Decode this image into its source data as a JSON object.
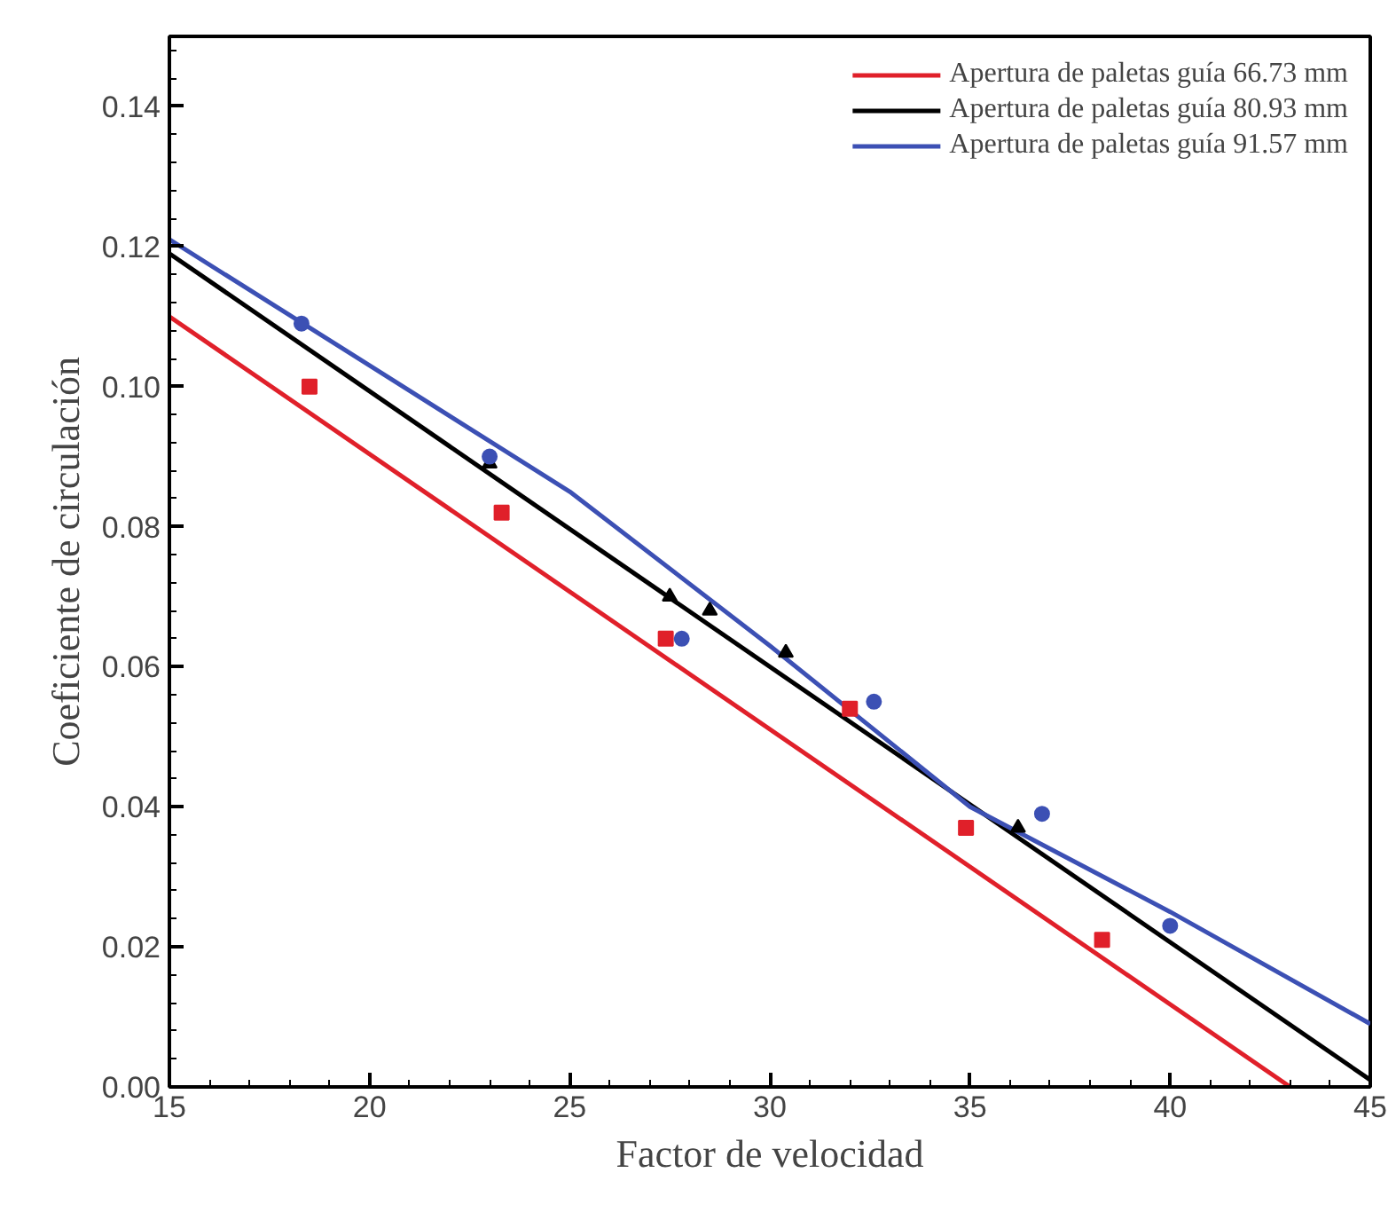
{
  "chart_data": {
    "type": "line",
    "xlabel": "Factor de velocidad",
    "ylabel": "Coeficiente de circulación",
    "xlim": [
      15,
      45
    ],
    "ylim": [
      0,
      0.15
    ],
    "xticks": [
      15,
      20,
      25,
      30,
      35,
      40,
      45
    ],
    "yticks": [
      {
        "value": 0,
        "label": "0.00"
      },
      {
        "value": 0.02,
        "label": "0.02"
      },
      {
        "value": 0.04,
        "label": "0.04"
      },
      {
        "value": 0.06,
        "label": "0.06"
      },
      {
        "value": 0.08,
        "label": "0.08"
      },
      {
        "value": 0.1,
        "label": "0.10"
      },
      {
        "value": 0.12,
        "label": "0.12"
      },
      {
        "value": 0.14,
        "label": "0.14"
      }
    ],
    "grid": false,
    "legend": "top right",
    "marker": "none",
    "line_style": "solid",
    "series": [
      {
        "name": "Apertura de paletas guía 66.73 mm",
        "color": "#e0202a",
        "x": [
          15,
          43
        ],
        "values": [
          0.11,
          0.0
        ]
      },
      {
        "name": "Apertura de paletas guía 80.93 mm",
        "color": "#000000",
        "x": [
          15,
          45
        ],
        "values": [
          0.119,
          0.001
        ]
      },
      {
        "name": "Apertura de paletas guía 91.57 mm",
        "color": "#3c50b4",
        "x": [
          15,
          20,
          25,
          30,
          35,
          40,
          45
        ],
        "values": [
          0.121,
          0.103,
          0.085,
          0.063,
          0.04,
          0.025,
          0.009
        ]
      },
      {
        "type": "scatter",
        "marker": "square",
        "color": "#e0202a",
        "x": [
          18.5,
          23.3,
          27.4,
          32.0,
          34.9,
          38.3
        ],
        "values": [
          0.1,
          0.082,
          0.064,
          0.054,
          0.037,
          0.021
        ]
      },
      {
        "type": "scatter",
        "marker": "triangle",
        "color": "#000000",
        "x": [
          23.0,
          27.5,
          28.5,
          30.4,
          36.2
        ],
        "values": [
          0.089,
          0.07,
          0.068,
          0.062,
          0.037
        ]
      },
      {
        "type": "scatter",
        "marker": "circle",
        "color": "#3c50b4",
        "x": [
          18.3,
          23.0,
          27.8,
          32.6,
          36.8,
          40.0
        ],
        "values": [
          0.109,
          0.09,
          0.064,
          0.055,
          0.039,
          0.023
        ]
      }
    ]
  }
}
